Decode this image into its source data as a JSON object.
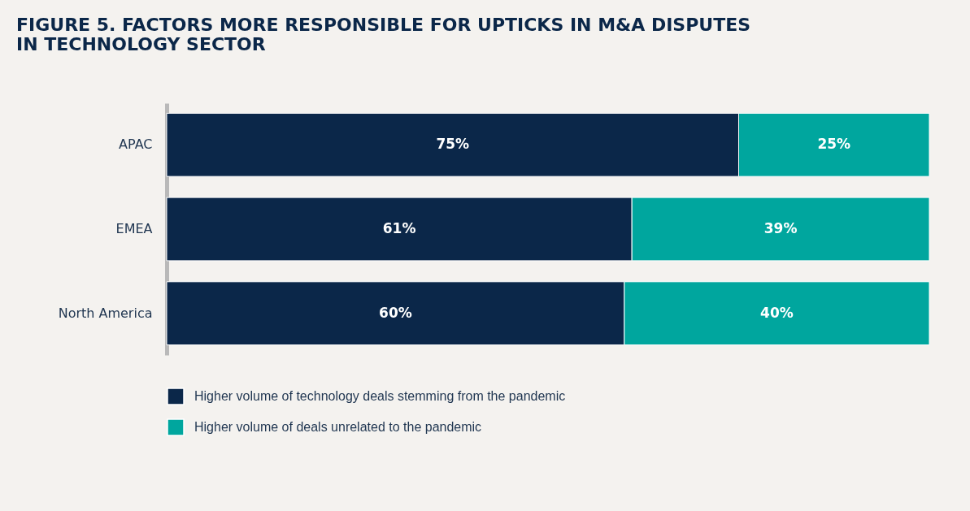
{
  "chart_data": {
    "type": "bar",
    "orientation": "horizontal",
    "stacked": true,
    "title": "FIGURE 5. FACTORS MORE RESPONSIBLE FOR UPTICKS IN M&A DISPUTES IN TECHNOLOGY SECTOR",
    "categories": [
      "APAC",
      "EMEA",
      "North America"
    ],
    "series": [
      {
        "name": "Higher volume of technology deals stemming from the pandemic",
        "color": "#0b2749",
        "values": [
          75,
          61,
          60
        ],
        "value_labels": [
          "75%",
          "61%",
          "60%"
        ]
      },
      {
        "name": "Higher volume of deals unrelated to the pandemic",
        "color": "#00a69e",
        "values": [
          25,
          39,
          40
        ],
        "value_labels": [
          "25%",
          "39%",
          "40%"
        ]
      }
    ],
    "legend": "bottom",
    "grid": false
  }
}
